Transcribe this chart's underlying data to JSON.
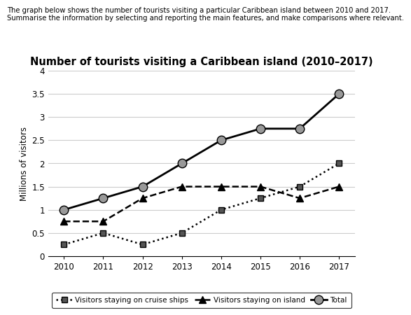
{
  "title": "Number of tourists visiting a Caribbean island (2010–2017)",
  "header_line1": "The graph below shows the number of tourists visiting a particular Caribbean island between 2010 and 2017.",
  "header_line2": "Summarise the information by selecting and reporting the main features, and make comparisons where relevant.",
  "ylabel": "Millions of visitors",
  "years": [
    2010,
    2011,
    2012,
    2013,
    2014,
    2015,
    2016,
    2017
  ],
  "cruise": [
    0.25,
    0.5,
    0.25,
    0.5,
    1.0,
    1.25,
    1.5,
    2.0
  ],
  "island": [
    0.75,
    0.75,
    1.25,
    1.5,
    1.5,
    1.5,
    1.25,
    1.5
  ],
  "total": [
    1.0,
    1.25,
    1.5,
    2.0,
    2.5,
    2.75,
    2.75,
    3.5
  ],
  "ylim": [
    0,
    4
  ],
  "yticks": [
    0,
    0.5,
    1.0,
    1.5,
    2.0,
    2.5,
    3.0,
    3.5,
    4.0
  ],
  "bg_color": "#ffffff",
  "grid_color": "#cccccc",
  "line_color": "#000000",
  "marker_gray": "#999999"
}
